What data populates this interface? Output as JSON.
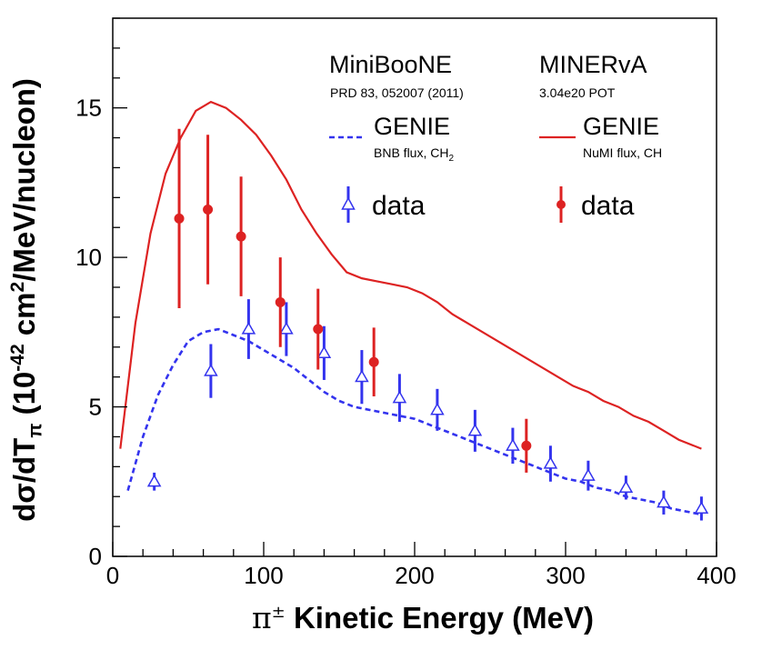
{
  "chart_data": {
    "type": "line",
    "title": "",
    "xlabel": {
      "symbol": "π",
      "superscript": "±",
      "text": "Kinetic Energy (MeV)"
    },
    "ylabel": {
      "prefix": "dσ/dT",
      "sub": "π",
      "open": "(10",
      "exp": "-42",
      "unit1": "cm",
      "exp2": "2",
      "unit2": "/MeV/nucleon)"
    },
    "xlim": [
      0,
      400
    ],
    "ylim": [
      0,
      18
    ],
    "x_ticks": [
      0,
      100,
      200,
      300,
      400
    ],
    "y_ticks": [
      0,
      5,
      10,
      15
    ],
    "x_tick_labels": [
      "0",
      "100",
      "200",
      "300",
      "400"
    ],
    "y_tick_labels": [
      "0",
      "5",
      "10",
      "15"
    ],
    "legend_position": "top-right",
    "groups": [
      {
        "experiment": "MiniBooNE",
        "reference": "PRD 83, 052007 (2011)"
      },
      {
        "experiment": "MINERvA",
        "reference": "3.04e20 POT"
      }
    ],
    "series": [
      {
        "name": "GENIE",
        "note": "BNB flux, CH",
        "note_sub": "2",
        "kind": "line",
        "style": "dashed",
        "color": "#3333ee",
        "x": [
          10,
          20,
          30,
          40,
          50,
          60,
          70,
          80,
          90,
          100,
          110,
          120,
          130,
          140,
          150,
          160,
          170,
          180,
          190,
          200,
          210,
          220,
          230,
          240,
          250,
          260,
          270,
          280,
          290,
          300,
          310,
          320,
          330,
          340,
          350,
          360,
          370,
          380,
          390
        ],
        "y": [
          2.2,
          4.0,
          5.4,
          6.4,
          7.2,
          7.5,
          7.6,
          7.4,
          7.2,
          6.9,
          6.6,
          6.3,
          5.9,
          5.5,
          5.2,
          5.0,
          4.9,
          4.8,
          4.7,
          4.6,
          4.4,
          4.2,
          4.0,
          3.8,
          3.6,
          3.4,
          3.2,
          3.0,
          2.8,
          2.6,
          2.5,
          2.3,
          2.2,
          2.0,
          1.9,
          1.8,
          1.6,
          1.5,
          1.4
        ]
      },
      {
        "name": "GENIE",
        "note": "NuMI flux, CH",
        "kind": "line",
        "style": "solid",
        "color": "#dd2222",
        "x": [
          5,
          15,
          25,
          35,
          45,
          55,
          65,
          75,
          85,
          95,
          105,
          115,
          125,
          135,
          145,
          155,
          165,
          175,
          185,
          195,
          205,
          215,
          225,
          235,
          245,
          255,
          265,
          275,
          285,
          295,
          305,
          315,
          325,
          335,
          345,
          355,
          365,
          375,
          390
        ],
        "y": [
          3.6,
          7.8,
          10.8,
          12.8,
          14.0,
          14.9,
          15.2,
          15.0,
          14.6,
          14.1,
          13.4,
          12.6,
          11.6,
          10.8,
          10.1,
          9.5,
          9.3,
          9.2,
          9.1,
          9.0,
          8.8,
          8.5,
          8.1,
          7.8,
          7.5,
          7.2,
          6.9,
          6.6,
          6.3,
          6.0,
          5.7,
          5.5,
          5.2,
          5.0,
          4.7,
          4.5,
          4.2,
          3.9,
          3.6
        ]
      },
      {
        "name": "data",
        "kind": "points",
        "marker": "open-triangle",
        "color": "#3333ee",
        "x": [
          27.5,
          65,
          90,
          115,
          140,
          165,
          190,
          215,
          240,
          265,
          290,
          315,
          340,
          365,
          390
        ],
        "y": [
          2.5,
          6.2,
          7.6,
          7.6,
          6.8,
          6.0,
          5.3,
          4.9,
          4.2,
          3.7,
          3.1,
          2.7,
          2.3,
          1.8,
          1.6
        ],
        "err": [
          0.3,
          0.9,
          1.0,
          0.9,
          0.9,
          0.9,
          0.8,
          0.7,
          0.7,
          0.6,
          0.6,
          0.5,
          0.4,
          0.4,
          0.4
        ]
      },
      {
        "name": "data",
        "kind": "points",
        "marker": "filled-circle",
        "color": "#dd2222",
        "x": [
          44,
          63,
          85,
          111,
          136,
          173,
          274
        ],
        "y": [
          11.3,
          11.6,
          10.7,
          8.5,
          7.6,
          6.5,
          3.7
        ],
        "err": [
          3.0,
          2.5,
          2.0,
          1.5,
          1.35,
          1.15,
          0.9
        ]
      }
    ]
  }
}
